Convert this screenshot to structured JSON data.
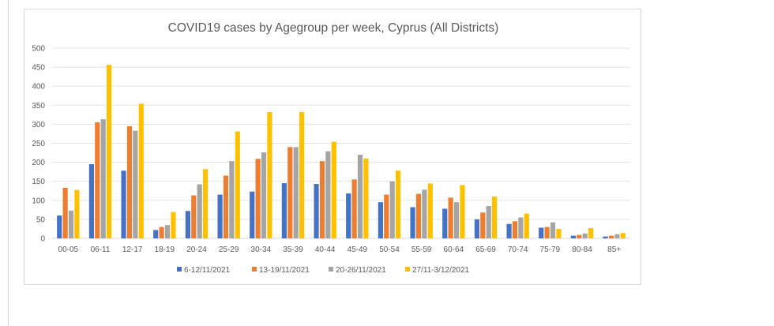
{
  "chart_data": {
    "type": "bar",
    "title": "COVID19 cases by Agegroup per week, Cyprus (All Districts)",
    "xlabel": "",
    "ylabel": "",
    "ylim": [
      0,
      500
    ],
    "yticks": [
      0,
      50,
      100,
      150,
      200,
      250,
      300,
      350,
      400,
      450,
      500
    ],
    "grid": true,
    "legend_position": "bottom",
    "categories": [
      "00-05",
      "06-11",
      "12-17",
      "18-19",
      "20-24",
      "25-29",
      "30-34",
      "35-39",
      "40-44",
      "45-49",
      "50-54",
      "55-59",
      "60-64",
      "65-69",
      "70-74",
      "75-79",
      "80-84",
      "85+"
    ],
    "series": [
      {
        "name": "6-12/11/2021",
        "color": "#4472c4",
        "values": [
          60,
          195,
          178,
          22,
          72,
          115,
          123,
          145,
          143,
          118,
          95,
          82,
          78,
          50,
          38,
          28,
          7,
          5
        ]
      },
      {
        "name": "13-19/11/2021",
        "color": "#ed7d31",
        "values": [
          133,
          305,
          295,
          30,
          113,
          165,
          209,
          240,
          203,
          155,
          115,
          117,
          107,
          68,
          45,
          30,
          9,
          7
        ]
      },
      {
        "name": "20-26/11/2021",
        "color": "#a5a5a5",
        "values": [
          73,
          313,
          283,
          35,
          142,
          203,
          226,
          240,
          229,
          220,
          150,
          128,
          95,
          85,
          55,
          42,
          13,
          11
        ]
      },
      {
        "name": "27/11-3/12/2021",
        "color": "#ffc000",
        "values": [
          127,
          456,
          354,
          69,
          182,
          281,
          332,
          332,
          254,
          210,
          178,
          144,
          140,
          110,
          65,
          25,
          27,
          14
        ]
      }
    ]
  }
}
